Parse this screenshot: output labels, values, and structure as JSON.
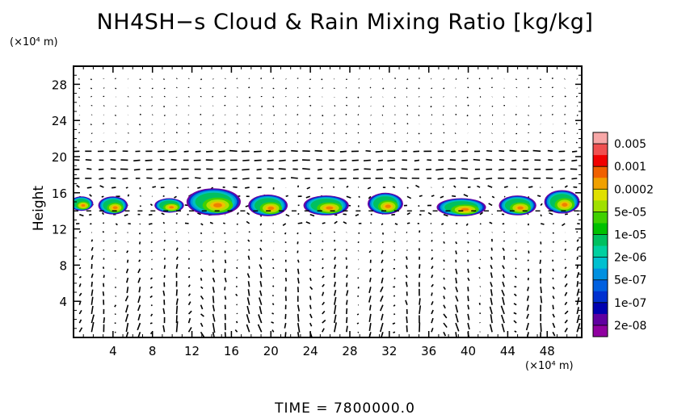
{
  "chart_data": {
    "type": "heatmap",
    "title": "NH4SH−s Cloud & Rain Mixing Ratio [kg/kg]",
    "ylabel": "Height",
    "xlabel": "",
    "x_unit": "(×10⁴ m)",
    "y_unit": "(×10⁴ m)",
    "xlim": [
      0,
      51.5
    ],
    "ylim": [
      0,
      30
    ],
    "x_ticks": [
      4,
      8,
      12,
      16,
      20,
      24,
      28,
      32,
      36,
      40,
      44,
      48
    ],
    "y_ticks": [
      4,
      8,
      12,
      16,
      20,
      24,
      28
    ],
    "legend": {
      "labels": [
        "0.005",
        "0.001",
        "0.0002",
        "5e-05",
        "1e-05",
        "2e-06",
        "5e-07",
        "1e-07",
        "2e-08"
      ],
      "colors": [
        "#f7a7a7",
        "#f05050",
        "#f00000",
        "#f06000",
        "#f0a000",
        "#e0e000",
        "#a0e000",
        "#40d000",
        "#00c000",
        "#00c060",
        "#00d0a0",
        "#00c0d0",
        "#0090e0",
        "#0060e0",
        "#0030d0",
        "#0000b0",
        "#6000a0",
        "#9000a0"
      ]
    },
    "cloud_clusters": [
      {
        "x": 0.8,
        "y": 14.8,
        "w": 2.4,
        "h": 1.6
      },
      {
        "x": 4.0,
        "y": 14.6,
        "w": 3.0,
        "h": 2.0
      },
      {
        "x": 9.7,
        "y": 14.6,
        "w": 3.0,
        "h": 1.6
      },
      {
        "x": 14.2,
        "y": 15.0,
        "w": 5.5,
        "h": 3.0
      },
      {
        "x": 19.7,
        "y": 14.6,
        "w": 4.0,
        "h": 2.4
      },
      {
        "x": 25.6,
        "y": 14.6,
        "w": 4.6,
        "h": 2.2
      },
      {
        "x": 31.6,
        "y": 14.8,
        "w": 3.6,
        "h": 2.4
      },
      {
        "x": 39.3,
        "y": 14.4,
        "w": 5.0,
        "h": 2.0
      },
      {
        "x": 45.0,
        "y": 14.6,
        "w": 3.8,
        "h": 2.2
      },
      {
        "x": 49.5,
        "y": 15.0,
        "w": 3.6,
        "h": 2.6
      }
    ],
    "cloud_base_line": 14.0,
    "wind_vectors_shown": true
  },
  "time_label": "TIME  =  7800000.0",
  "y_label_text": "Height"
}
